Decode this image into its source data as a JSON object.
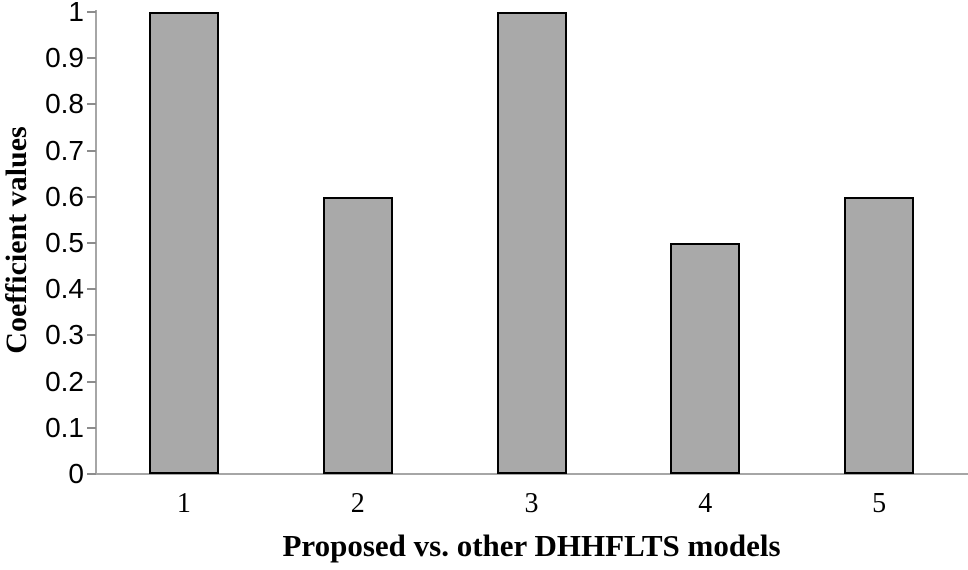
{
  "chart_data": {
    "type": "bar",
    "title": "",
    "xlabel": "Proposed vs. other DHHFLTS models",
    "ylabel": "Coefficient values",
    "categories": [
      "1",
      "2",
      "3",
      "4",
      "5"
    ],
    "values": [
      1,
      0.6,
      1,
      0.5,
      0.6
    ],
    "ylim": [
      0,
      1
    ],
    "yticks": [
      {
        "value": 0,
        "label": "0"
      },
      {
        "value": 0.1,
        "label": "0.1"
      },
      {
        "value": 0.2,
        "label": "0.2"
      },
      {
        "value": 0.3,
        "label": "0.3"
      },
      {
        "value": 0.4,
        "label": "0.4"
      },
      {
        "value": 0.5,
        "label": "0.5"
      },
      {
        "value": 0.6,
        "label": "0.6"
      },
      {
        "value": 0.7,
        "label": "0.7"
      },
      {
        "value": 0.8,
        "label": "0.8"
      },
      {
        "value": 0.9,
        "label": "0.9"
      },
      {
        "value": 1,
        "label": "1"
      }
    ],
    "grid": false,
    "legend": null,
    "colors": {
      "bar_fill": "#a9a9a9",
      "bar_border": "#000000",
      "axis_line": "#a6a6a6",
      "tick_mark": "#8c8c8c",
      "text": "#000000",
      "background": "#ffffff"
    }
  }
}
